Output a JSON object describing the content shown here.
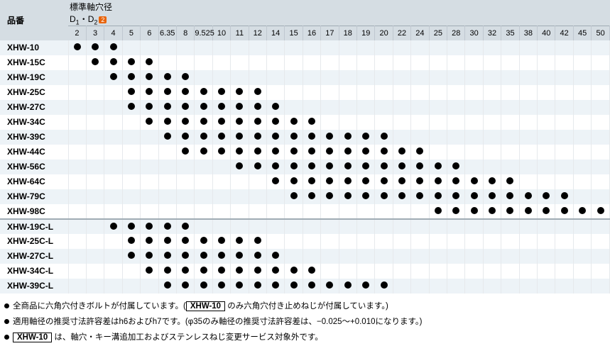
{
  "header": {
    "partLabel": "品番",
    "shaftLabel": "標準軸穴径",
    "shaftSub": "D1・D2",
    "badge": "2"
  },
  "columns": [
    "2",
    "3",
    "4",
    "5",
    "6",
    "6.35",
    "8",
    "9.525",
    "10",
    "11",
    "12",
    "14",
    "15",
    "16",
    "17",
    "18",
    "19",
    "20",
    "22",
    "24",
    "25",
    "28",
    "30",
    "32",
    "35",
    "38",
    "40",
    "42",
    "45",
    "50"
  ],
  "rows": [
    {
      "part": "XHW-10",
      "dots": [
        1,
        1,
        1,
        0,
        0,
        0,
        0,
        0,
        0,
        0,
        0,
        0,
        0,
        0,
        0,
        0,
        0,
        0,
        0,
        0,
        0,
        0,
        0,
        0,
        0,
        0,
        0,
        0,
        0,
        0
      ]
    },
    {
      "part": "XHW-15C",
      "dots": [
        0,
        1,
        1,
        1,
        1,
        0,
        0,
        0,
        0,
        0,
        0,
        0,
        0,
        0,
        0,
        0,
        0,
        0,
        0,
        0,
        0,
        0,
        0,
        0,
        0,
        0,
        0,
        0,
        0,
        0
      ]
    },
    {
      "part": "XHW-19C",
      "dots": [
        0,
        0,
        1,
        1,
        1,
        1,
        1,
        0,
        0,
        0,
        0,
        0,
        0,
        0,
        0,
        0,
        0,
        0,
        0,
        0,
        0,
        0,
        0,
        0,
        0,
        0,
        0,
        0,
        0,
        0
      ]
    },
    {
      "part": "XHW-25C",
      "dots": [
        0,
        0,
        0,
        1,
        1,
        1,
        1,
        1,
        1,
        1,
        1,
        0,
        0,
        0,
        0,
        0,
        0,
        0,
        0,
        0,
        0,
        0,
        0,
        0,
        0,
        0,
        0,
        0,
        0,
        0
      ]
    },
    {
      "part": "XHW-27C",
      "dots": [
        0,
        0,
        0,
        1,
        1,
        1,
        1,
        1,
        1,
        1,
        1,
        1,
        0,
        0,
        0,
        0,
        0,
        0,
        0,
        0,
        0,
        0,
        0,
        0,
        0,
        0,
        0,
        0,
        0,
        0
      ]
    },
    {
      "part": "XHW-34C",
      "dots": [
        0,
        0,
        0,
        0,
        1,
        1,
        1,
        1,
        1,
        1,
        1,
        1,
        1,
        1,
        0,
        0,
        0,
        0,
        0,
        0,
        0,
        0,
        0,
        0,
        0,
        0,
        0,
        0,
        0,
        0
      ]
    },
    {
      "part": "XHW-39C",
      "dots": [
        0,
        0,
        0,
        0,
        0,
        1,
        1,
        1,
        1,
        1,
        1,
        1,
        1,
        1,
        1,
        1,
        1,
        1,
        0,
        0,
        0,
        0,
        0,
        0,
        0,
        0,
        0,
        0,
        0,
        0
      ]
    },
    {
      "part": "XHW-44C",
      "dots": [
        0,
        0,
        0,
        0,
        0,
        0,
        1,
        1,
        1,
        1,
        1,
        1,
        1,
        1,
        1,
        1,
        1,
        1,
        1,
        1,
        0,
        0,
        0,
        0,
        0,
        0,
        0,
        0,
        0,
        0
      ]
    },
    {
      "part": "XHW-56C",
      "dots": [
        0,
        0,
        0,
        0,
        0,
        0,
        0,
        0,
        0,
        1,
        1,
        1,
        1,
        1,
        1,
        1,
        1,
        1,
        1,
        1,
        1,
        1,
        0,
        0,
        0,
        0,
        0,
        0,
        0,
        0
      ]
    },
    {
      "part": "XHW-64C",
      "dots": [
        0,
        0,
        0,
        0,
        0,
        0,
        0,
        0,
        0,
        0,
        0,
        1,
        1,
        1,
        1,
        1,
        1,
        1,
        1,
        1,
        1,
        1,
        1,
        1,
        1,
        0,
        0,
        0,
        0,
        0
      ]
    },
    {
      "part": "XHW-79C",
      "dots": [
        0,
        0,
        0,
        0,
        0,
        0,
        0,
        0,
        0,
        0,
        0,
        0,
        1,
        1,
        1,
        1,
        1,
        1,
        1,
        1,
        1,
        1,
        1,
        1,
        1,
        1,
        1,
        1,
        0,
        0
      ]
    },
    {
      "part": "XHW-98C",
      "dots": [
        0,
        0,
        0,
        0,
        0,
        0,
        0,
        0,
        0,
        0,
        0,
        0,
        0,
        0,
        0,
        0,
        0,
        0,
        0,
        0,
        1,
        1,
        1,
        1,
        1,
        1,
        1,
        1,
        1,
        1
      ]
    }
  ],
  "rows2": [
    {
      "part": "XHW-19C-L",
      "dots": [
        0,
        0,
        1,
        1,
        1,
        1,
        1,
        0,
        0,
        0,
        0,
        0,
        0,
        0,
        0,
        0,
        0,
        0,
        0,
        0,
        0,
        0,
        0,
        0,
        0,
        0,
        0,
        0,
        0,
        0
      ]
    },
    {
      "part": "XHW-25C-L",
      "dots": [
        0,
        0,
        0,
        1,
        1,
        1,
        1,
        1,
        1,
        1,
        1,
        0,
        0,
        0,
        0,
        0,
        0,
        0,
        0,
        0,
        0,
        0,
        0,
        0,
        0,
        0,
        0,
        0,
        0,
        0
      ]
    },
    {
      "part": "XHW-27C-L",
      "dots": [
        0,
        0,
        0,
        1,
        1,
        1,
        1,
        1,
        1,
        1,
        1,
        1,
        0,
        0,
        0,
        0,
        0,
        0,
        0,
        0,
        0,
        0,
        0,
        0,
        0,
        0,
        0,
        0,
        0,
        0
      ]
    },
    {
      "part": "XHW-34C-L",
      "dots": [
        0,
        0,
        0,
        0,
        1,
        1,
        1,
        1,
        1,
        1,
        1,
        1,
        1,
        1,
        0,
        0,
        0,
        0,
        0,
        0,
        0,
        0,
        0,
        0,
        0,
        0,
        0,
        0,
        0,
        0
      ]
    },
    {
      "part": "XHW-39C-L",
      "dots": [
        0,
        0,
        0,
        0,
        0,
        1,
        1,
        1,
        1,
        1,
        1,
        1,
        1,
        1,
        1,
        1,
        1,
        1,
        0,
        0,
        0,
        0,
        0,
        0,
        0,
        0,
        0,
        0,
        0,
        0
      ]
    }
  ],
  "notes": {
    "n1_pre": "全商品に六角穴付きボルトが付属しています。(",
    "n1_boxed": "XHW-10",
    "n1_post": " のみ六角穴付き止めねじが付属しています。)",
    "n2": "適用軸径の推奨寸法許容差はh6およびh7です。(φ35のみ軸径の推奨寸法許容差は、−0.025〜+0.010になります。)",
    "n3_boxed": "XHW-10",
    "n3_post": " は、軸穴・キー溝追加工およびステンレスねじ変更サービス対象外です。"
  }
}
